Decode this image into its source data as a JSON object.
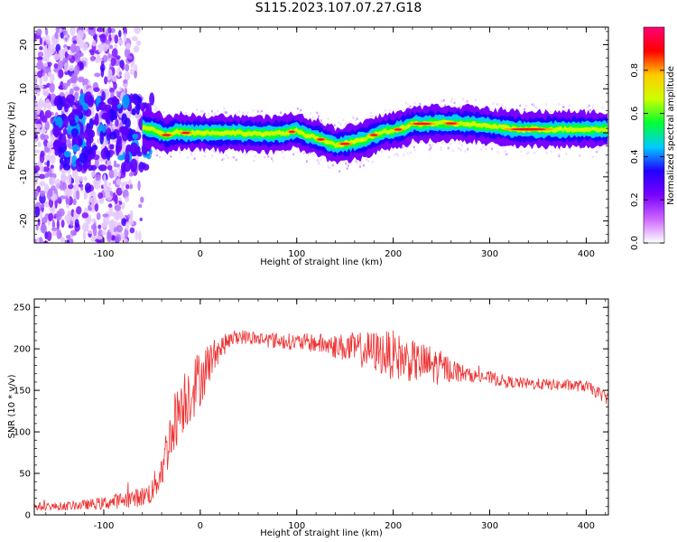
{
  "title": "S115.2023.107.07.27.G18",
  "chart_data": [
    {
      "type": "heatmap",
      "xlabel": "Height of straight line (km)",
      "ylabel": "Frequency (Hz)",
      "xlim": [
        -172,
        423
      ],
      "ylim": [
        -25,
        24
      ],
      "x_ticks": [
        -100,
        0,
        100,
        200,
        300,
        400
      ],
      "y_ticks": [
        -20,
        -10,
        0,
        10,
        20
      ],
      "grid": false,
      "colorbar": {
        "label": "Normalized spectral amplitude",
        "range": [
          0,
          1
        ],
        "ticks": [
          "0.0",
          "0.2",
          "0.4",
          "0.6",
          "0.8"
        ],
        "colors": [
          "#ffffff",
          "#cc66ff",
          "#7a00ff",
          "#2200ff",
          "#00ccff",
          "#00ff33",
          "#ccff00",
          "#ffcc00",
          "#ff0000",
          "#ff0077"
        ]
      },
      "ridge": {
        "x": [
          -65,
          -55,
          -45,
          -35,
          -25,
          -15,
          -5,
          10,
          40,
          70,
          90,
          100,
          110,
          120,
          130,
          140,
          150,
          160,
          170,
          180,
          190,
          200,
          210,
          220,
          250,
          280,
          300,
          330,
          360,
          390,
          423
        ],
        "freq": [
          1.5,
          1.0,
          0.5,
          -0.5,
          0.3,
          0.0,
          0.0,
          0.0,
          0.0,
          -0.3,
          0.0,
          0.5,
          -0.5,
          -1.0,
          -2.0,
          -2.8,
          -2.5,
          -2.0,
          -1.5,
          -0.5,
          0.2,
          0.5,
          1.0,
          2.0,
          2.2,
          2.0,
          1.5,
          0.8,
          0.8,
          0.8,
          0.8
        ]
      }
    },
    {
      "type": "line",
      "xlabel": "Height of straight line (km)",
      "ylabel": "SNR (10 * v/v)",
      "xlim": [
        -172,
        423
      ],
      "ylim": [
        0,
        260
      ],
      "x_ticks": [
        -100,
        0,
        100,
        200,
        300,
        400
      ],
      "y_ticks": [
        0,
        50,
        100,
        150,
        200,
        250
      ],
      "grid": false,
      "series": [
        {
          "color": "#ee3333",
          "x": [
            -172,
            -150,
            -120,
            -100,
            -80,
            -60,
            -50,
            -40,
            -30,
            -20,
            -10,
            0,
            10,
            20,
            30,
            40,
            60,
            80,
            100,
            120,
            140,
            160,
            180,
            200,
            220,
            240,
            260,
            280,
            300,
            320,
            340,
            360,
            380,
            400,
            423
          ],
          "y": [
            10,
            10,
            12,
            14,
            18,
            22,
            28,
            55,
            100,
            135,
            150,
            165,
            185,
            200,
            210,
            215,
            212,
            210,
            208,
            207,
            203,
            200,
            197,
            192,
            185,
            180,
            175,
            168,
            165,
            160,
            158,
            157,
            156,
            155,
            140
          ],
          "noise": [
            5,
            5,
            6,
            8,
            10,
            12,
            15,
            25,
            35,
            40,
            40,
            35,
            25,
            15,
            10,
            9,
            9,
            10,
            10,
            12,
            15,
            20,
            25,
            30,
            25,
            25,
            15,
            8,
            8,
            7,
            7,
            7,
            7,
            7,
            8
          ]
        }
      ]
    }
  ]
}
